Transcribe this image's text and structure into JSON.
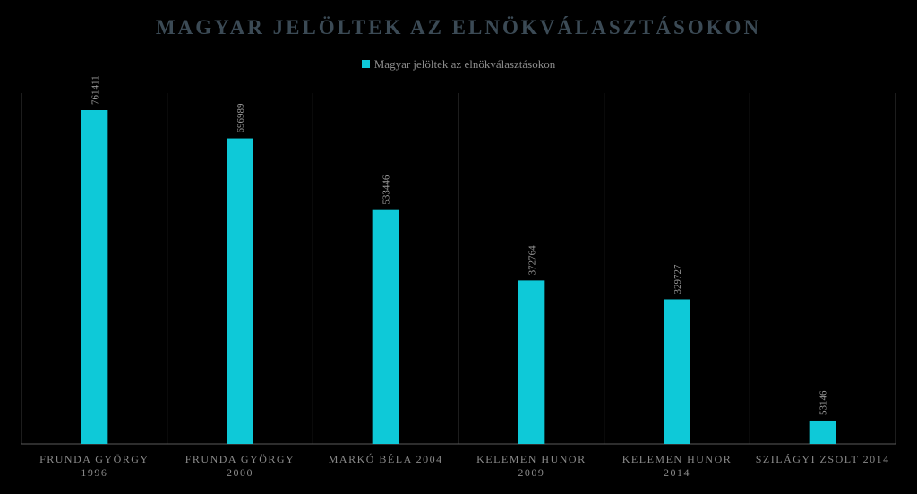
{
  "chart_data": {
    "type": "bar",
    "title": "MAGYAR JELÖLTEK AZ ELNÖKVÁLASZTÁSOKON",
    "legend": {
      "position": "top",
      "entries": [
        "Magyar jelöltek az elnökválasztásokon"
      ]
    },
    "categories": [
      [
        "FRUNDA GYÖRGY",
        "1996"
      ],
      [
        "FRUNDA GYÖRGY",
        "2000"
      ],
      [
        "MARKÓ BÉLA 2004"
      ],
      [
        "KELEMEN HUNOR",
        "2009"
      ],
      [
        "KELEMEN HUNOR",
        "2014"
      ],
      [
        "SZILÁGYI ZSOLT 2014"
      ]
    ],
    "series": [
      {
        "name": "Magyar jelöltek az elnökválasztásokon",
        "values": [
          761411,
          696989,
          533446,
          372764,
          329727,
          53146
        ],
        "value_labels": [
          "761411",
          "696989",
          "533446",
          "372764",
          "329727",
          "53146"
        ],
        "color": "#0ec9d8"
      }
    ],
    "ylim": [
      0,
      800000
    ],
    "grid": "vertical category separators",
    "background": "#000000"
  }
}
